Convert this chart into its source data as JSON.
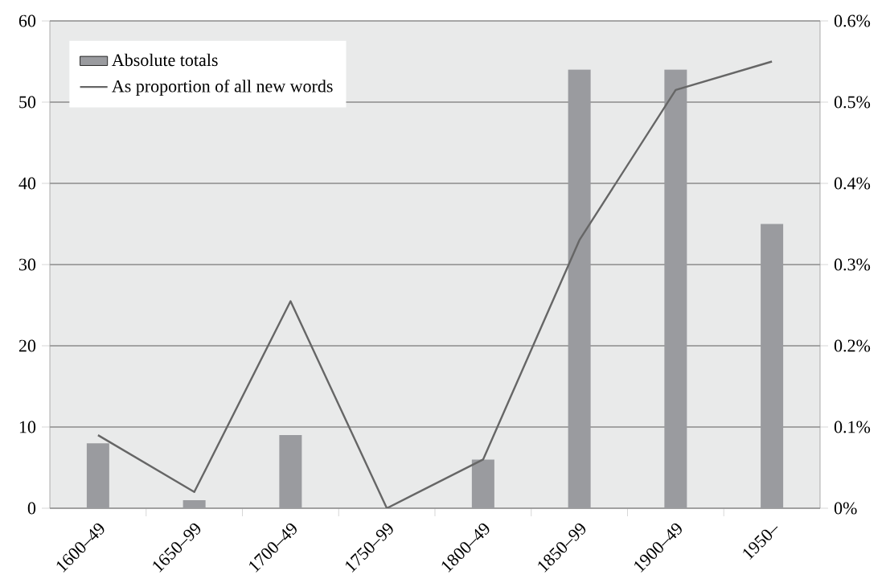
{
  "chart_data": {
    "type": "bar",
    "categories": [
      "1600–49",
      "1650–99",
      "1700–49",
      "1750–99",
      "1800–49",
      "1850–99",
      "1900–49",
      "1950–"
    ],
    "series": [
      {
        "name": "Absolute totals",
        "color": "#9a9b9f",
        "values": [
          8,
          1,
          9,
          0,
          6,
          54,
          54,
          35
        ]
      },
      {
        "name": "As proportion of all new words",
        "type": "line",
        "axis": "y2",
        "color": "#666666",
        "values": [
          0.09,
          0.02,
          0.255,
          0,
          0.06,
          0.33,
          0.515,
          0.55
        ]
      }
    ],
    "ylim": [
      0,
      60
    ],
    "yticks": [
      0,
      10,
      20,
      30,
      40,
      50,
      60
    ],
    "y2lim": [
      0,
      0.6
    ],
    "y2ticks": [
      {
        "value": 0,
        "label": "0%"
      },
      {
        "value": 0.1,
        "label": "0.1%"
      },
      {
        "value": 0.2,
        "label": "0.2%"
      },
      {
        "value": 0.3,
        "label": "0.3%"
      },
      {
        "value": 0.4,
        "label": "0.4%"
      },
      {
        "value": 0.5,
        "label": "0.5%"
      },
      {
        "value": 0.6,
        "label": "0.6%"
      }
    ],
    "grid": "y",
    "legend": "top left",
    "marker": "none",
    "line_style": "solid"
  }
}
